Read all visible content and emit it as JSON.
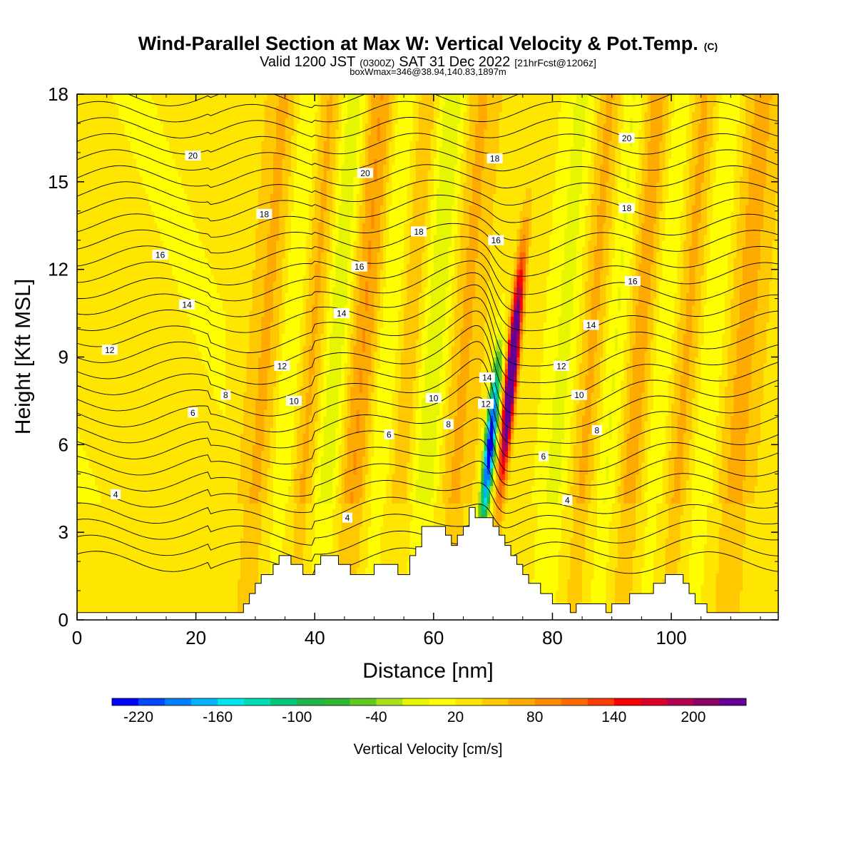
{
  "chart_data": {
    "type": "heatmap",
    "title": "Wind-Parallel Section at Max W: Vertical Velocity & Pot.Temp.",
    "title_suffix": "(C)",
    "subtitle_parts": [
      "Valid 1200 JST",
      "(0300Z)",
      "SAT 31 Dec 2022",
      "[21hrFcst@1206z]"
    ],
    "subtitle2": "boxWmax=346@38.94,140.83,1897m",
    "xlabel": "Distance [nm]",
    "ylabel": "Height [Kft MSL]",
    "xlim": [
      0,
      118
    ],
    "ylim": [
      0,
      18
    ],
    "x_ticks": [
      "0",
      "20",
      "40",
      "60",
      "80",
      "100"
    ],
    "x_tick_values": [
      0,
      20,
      40,
      60,
      80,
      100
    ],
    "y_ticks": [
      "0",
      "3",
      "6",
      "9",
      "12",
      "15",
      "18"
    ],
    "y_tick_values": [
      0,
      3,
      6,
      9,
      12,
      15,
      18
    ],
    "colorbar": {
      "label": "Vertical Velocity [cm/s]",
      "min": -240,
      "max": 240,
      "step": 20,
      "tick_labels": [
        "-220",
        "-160",
        "-100",
        "-40",
        "20",
        "80",
        "140",
        "200"
      ],
      "tick_values": [
        -220,
        -160,
        -100,
        -40,
        20,
        80,
        140,
        200
      ],
      "colors": [
        "#0000ff",
        "#0048ff",
        "#0080ff",
        "#00b4ff",
        "#00e6f0",
        "#00dcb4",
        "#00c878",
        "#20b44a",
        "#2fb832",
        "#60c81e",
        "#a8e01e",
        "#e6f500",
        "#ffff00",
        "#ffe600",
        "#ffc800",
        "#ffaa00",
        "#ff8c00",
        "#ff6a00",
        "#ff3c00",
        "#ff0000",
        "#dc0028",
        "#b40050",
        "#8c0064",
        "#640096"
      ]
    },
    "theta_contour_labels": [
      {
        "text": "20",
        "x": 19.5,
        "y": 15.9
      },
      {
        "text": "20",
        "x": 48.5,
        "y": 15.3
      },
      {
        "text": "20",
        "x": 92.5,
        "y": 16.5
      },
      {
        "text": "18",
        "x": 31.5,
        "y": 13.9
      },
      {
        "text": "18",
        "x": 57.5,
        "y": 13.3
      },
      {
        "text": "18",
        "x": 70.3,
        "y": 15.8
      },
      {
        "text": "18",
        "x": 92.5,
        "y": 14.1
      },
      {
        "text": "16",
        "x": 14,
        "y": 12.5
      },
      {
        "text": "16",
        "x": 47.5,
        "y": 12.1
      },
      {
        "text": "16",
        "x": 70.5,
        "y": 13.0
      },
      {
        "text": "16",
        "x": 93.5,
        "y": 11.6
      },
      {
        "text": "14",
        "x": 18.5,
        "y": 10.8
      },
      {
        "text": "14",
        "x": 44.5,
        "y": 10.5
      },
      {
        "text": "14",
        "x": 69.0,
        "y": 8.3
      },
      {
        "text": "14",
        "x": 86.5,
        "y": 10.1
      },
      {
        "text": "12",
        "x": 5.5,
        "y": 9.25
      },
      {
        "text": "12",
        "x": 34.5,
        "y": 8.7
      },
      {
        "text": "12",
        "x": 68.8,
        "y": 7.4
      },
      {
        "text": "12",
        "x": 81.5,
        "y": 8.7
      },
      {
        "text": "10",
        "x": 36.5,
        "y": 7.5
      },
      {
        "text": "10",
        "x": 60,
        "y": 7.6
      },
      {
        "text": "10",
        "x": 84.5,
        "y": 7.7
      },
      {
        "text": "8",
        "x": 25,
        "y": 7.7
      },
      {
        "text": "8",
        "x": 62.5,
        "y": 6.7
      },
      {
        "text": "8",
        "x": 87.5,
        "y": 6.5
      },
      {
        "text": "6",
        "x": 19.5,
        "y": 7.1
      },
      {
        "text": "6",
        "x": 52.5,
        "y": 6.35
      },
      {
        "text": "6",
        "x": 78.5,
        "y": 5.6
      },
      {
        "text": "4",
        "x": 6.5,
        "y": 4.3
      },
      {
        "text": "4",
        "x": 45.5,
        "y": 3.5
      },
      {
        "text": "4",
        "x": 82.5,
        "y": 4.1
      }
    ],
    "terrain_profile": [
      [
        0,
        0.25
      ],
      [
        28,
        0.25
      ],
      [
        28,
        0.55
      ],
      [
        29,
        0.55
      ],
      [
        29,
        0.9
      ],
      [
        30,
        0.9
      ],
      [
        30,
        1.25
      ],
      [
        31,
        1.25
      ],
      [
        31,
        1.55
      ],
      [
        33,
        1.55
      ],
      [
        33,
        1.9
      ],
      [
        34,
        1.9
      ],
      [
        34,
        2.2
      ],
      [
        36,
        2.2
      ],
      [
        36,
        1.9
      ],
      [
        38,
        1.9
      ],
      [
        38,
        1.55
      ],
      [
        40,
        1.55
      ],
      [
        40,
        1.9
      ],
      [
        41,
        1.9
      ],
      [
        41,
        2.2
      ],
      [
        44,
        2.2
      ],
      [
        44,
        1.9
      ],
      [
        46,
        1.9
      ],
      [
        46,
        1.55
      ],
      [
        50,
        1.55
      ],
      [
        50,
        1.9
      ],
      [
        54,
        1.9
      ],
      [
        54,
        1.55
      ],
      [
        56,
        1.55
      ],
      [
        56,
        2.2
      ],
      [
        57,
        2.2
      ],
      [
        57,
        2.5
      ],
      [
        58,
        2.5
      ],
      [
        58,
        3.2
      ],
      [
        62,
        3.2
      ],
      [
        62,
        2.9
      ],
      [
        63,
        2.9
      ],
      [
        63,
        2.55
      ],
      [
        64,
        2.55
      ],
      [
        64,
        2.9
      ],
      [
        65,
        2.9
      ],
      [
        65,
        3.2
      ],
      [
        66,
        3.2
      ],
      [
        66,
        3.85
      ],
      [
        67,
        3.85
      ],
      [
        67,
        3.5
      ],
      [
        70,
        3.5
      ],
      [
        70,
        3.2
      ],
      [
        71,
        3.2
      ],
      [
        71,
        2.9
      ],
      [
        72,
        2.9
      ],
      [
        72,
        2.55
      ],
      [
        73,
        2.55
      ],
      [
        73,
        2.2
      ],
      [
        74,
        2.2
      ],
      [
        74,
        1.9
      ],
      [
        75,
        1.9
      ],
      [
        75,
        1.55
      ],
      [
        76,
        1.55
      ],
      [
        76,
        1.25
      ],
      [
        78,
        1.25
      ],
      [
        78,
        0.9
      ],
      [
        80,
        0.9
      ],
      [
        80,
        0.55
      ],
      [
        83,
        0.55
      ],
      [
        83,
        0.25
      ],
      [
        84,
        0.25
      ],
      [
        84,
        0.55
      ],
      [
        89,
        0.55
      ],
      [
        89,
        0.25
      ],
      [
        90,
        0.25
      ],
      [
        90,
        0.55
      ],
      [
        93,
        0.55
      ],
      [
        93,
        0.9
      ],
      [
        97,
        0.9
      ],
      [
        97,
        1.25
      ],
      [
        99,
        1.25
      ],
      [
        99,
        1.55
      ],
      [
        102,
        1.55
      ],
      [
        102,
        1.25
      ],
      [
        103,
        1.25
      ],
      [
        103,
        0.9
      ],
      [
        104,
        0.9
      ],
      [
        104,
        0.55
      ],
      [
        106,
        0.55
      ],
      [
        106,
        0.25
      ],
      [
        118,
        0.25
      ]
    ],
    "updraft_max_cm_s": 346
  }
}
